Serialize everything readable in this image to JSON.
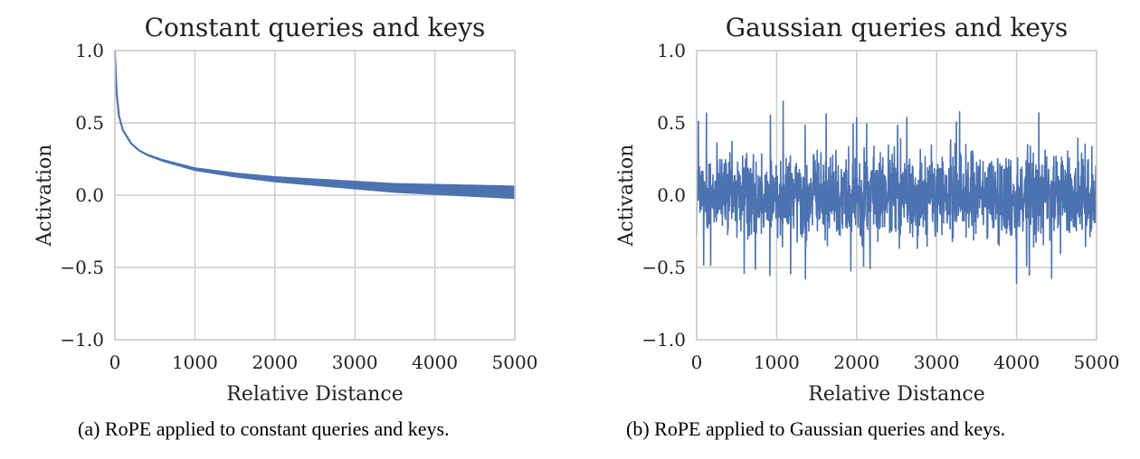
{
  "chart_data": [
    {
      "type": "line",
      "title": "Constant queries and keys",
      "xlabel": "Relative Distance",
      "ylabel": "Activation",
      "xlim": [
        0,
        5000
      ],
      "ylim": [
        -1.0,
        1.0
      ],
      "xticks": [
        "0",
        "1000",
        "2000",
        "3000",
        "4000",
        "5000"
      ],
      "yticks": [
        "−1.0",
        "−0.5",
        "0.0",
        "0.5",
        "1.0"
      ],
      "grid": true,
      "color": "#4c72b0",
      "series": [
        {
          "x": [
            0,
            20,
            50,
            100,
            200,
            300,
            400,
            600,
            800,
            1000,
            1500,
            2000,
            2500,
            3000,
            3500,
            4000,
            4500,
            5000
          ],
          "values": [
            1.0,
            0.72,
            0.55,
            0.45,
            0.36,
            0.31,
            0.28,
            0.24,
            0.21,
            0.18,
            0.14,
            0.11,
            0.09,
            0.07,
            0.05,
            0.04,
            0.03,
            0.02
          ],
          "oscillation_amplitude_at_end": 0.04
        }
      ]
    },
    {
      "type": "line",
      "title": "Gaussian queries and keys",
      "xlabel": "Relative Distance",
      "ylabel": "Activation",
      "xlim": [
        0,
        5000
      ],
      "ylim": [
        -1.0,
        1.0
      ],
      "xticks": [
        "0",
        "1000",
        "2000",
        "3000",
        "4000",
        "5000"
      ],
      "yticks": [
        "−1.0",
        "−0.5",
        "0.0",
        "0.5",
        "1.0"
      ],
      "grid": true,
      "color": "#4c72b0",
      "series": [
        {
          "x": [
            0,
            5000
          ],
          "values": [
            0.0,
            0.0
          ],
          "typical_range": [
            -0.45,
            0.45
          ],
          "max": 0.65,
          "min": -0.61
        }
      ]
    }
  ],
  "captions": {
    "a": "(a) RoPE applied to constant queries and keys.",
    "b": "(b) RoPE applied to Gaussian queries and keys."
  }
}
